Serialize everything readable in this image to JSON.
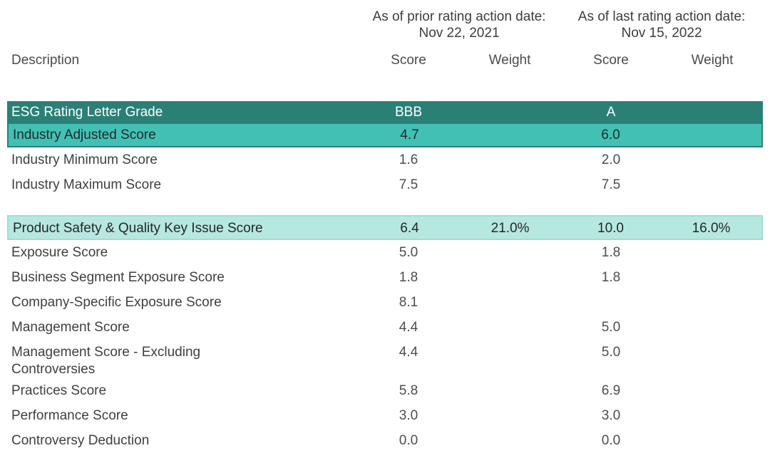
{
  "colors": {
    "dark_teal": "#2b8076",
    "medium_teal": "#43c0b4",
    "mint": "#b7e8df",
    "mint_border": "#9edfd4",
    "text_main": "#3d3d3d",
    "text_head": "#4a4a4a",
    "text_label": "#3f3f3f",
    "text_num": "#4d4d4d"
  },
  "chart_data": {
    "type": "table",
    "header": {
      "description_label": "Description",
      "groups": [
        {
          "label": "As of prior rating action date:",
          "date": "Nov 22, 2021"
        },
        {
          "label": "As of last rating action date:",
          "date": "Nov 15, 2022"
        }
      ],
      "columns": [
        "Score",
        "Weight",
        "Score",
        "Weight"
      ]
    },
    "sections": [
      {
        "name": "industry-summary",
        "rows": [
          {
            "label": "ESG Rating Letter Grade",
            "style": "dark",
            "values": [
              "BBB",
              "",
              "A",
              ""
            ]
          },
          {
            "label": "Industry Adjusted Score",
            "style": "medium",
            "values": [
              "4.7",
              "",
              "6.0",
              ""
            ]
          },
          {
            "label": "Industry Minimum Score",
            "style": "plain",
            "values": [
              "1.6",
              "",
              "2.0",
              ""
            ]
          },
          {
            "label": "Industry Maximum Score",
            "style": "plain",
            "values": [
              "7.5",
              "",
              "7.5",
              ""
            ]
          }
        ]
      },
      {
        "name": "key-issue-scores",
        "rows": [
          {
            "label": "Product Safety & Quality Key Issue Score",
            "style": "mint",
            "values": [
              "6.4",
              "21.0%",
              "10.0",
              "16.0%"
            ]
          },
          {
            "label": "Exposure Score",
            "style": "plain",
            "values": [
              "5.0",
              "",
              "1.8",
              ""
            ]
          },
          {
            "label": "Business Segment Exposure Score",
            "style": "plain",
            "values": [
              "1.8",
              "",
              "1.8",
              ""
            ]
          },
          {
            "label": "Company-Specific Exposure Score",
            "style": "plain",
            "values": [
              "8.1",
              "",
              "",
              ""
            ]
          },
          {
            "label": "Management Score",
            "style": "plain",
            "values": [
              "4.4",
              "",
              "5.0",
              ""
            ]
          },
          {
            "label": "Management Score - Excluding\nControversies",
            "style": "plain",
            "values": [
              "4.4",
              "",
              "5.0",
              ""
            ]
          },
          {
            "label": "Practices Score",
            "style": "plain",
            "values": [
              "5.8",
              "",
              "6.9",
              ""
            ]
          },
          {
            "label": "Performance Score",
            "style": "plain",
            "values": [
              "3.0",
              "",
              "3.0",
              ""
            ]
          },
          {
            "label": "Controversy Deduction",
            "style": "plain",
            "values": [
              "0.0",
              "",
              "0.0",
              ""
            ]
          }
        ]
      }
    ]
  }
}
